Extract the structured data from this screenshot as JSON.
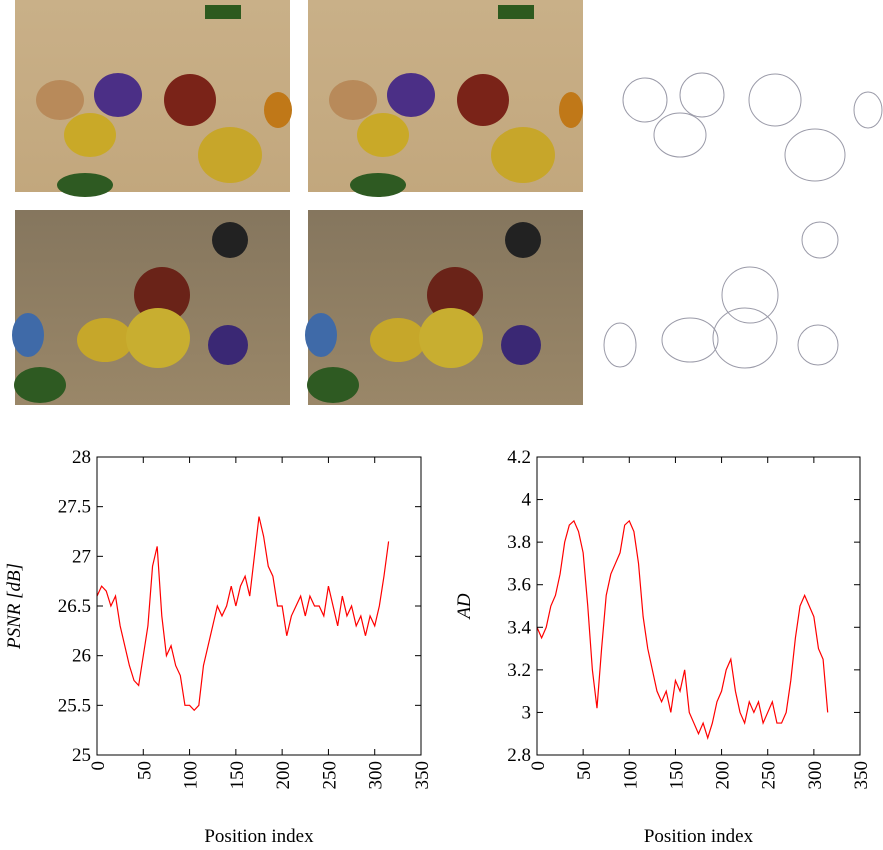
{
  "chart_data": [
    {
      "type": "line",
      "xlabel": "Position index",
      "ylabel": "PSNR [dB]",
      "x": [
        0,
        5,
        10,
        15,
        20,
        25,
        30,
        35,
        40,
        45,
        50,
        55,
        60,
        65,
        70,
        75,
        80,
        85,
        90,
        95,
        100,
        105,
        110,
        115,
        120,
        125,
        130,
        135,
        140,
        145,
        150,
        155,
        160,
        165,
        170,
        175,
        180,
        185,
        190,
        195,
        200,
        205,
        210,
        215,
        220,
        225,
        230,
        235,
        240,
        245,
        250,
        255,
        260,
        265,
        270,
        275,
        280,
        285,
        290,
        295,
        300,
        305,
        310,
        315
      ],
      "values": [
        26.6,
        26.7,
        26.65,
        26.5,
        26.6,
        26.3,
        26.1,
        25.9,
        25.75,
        25.7,
        26.0,
        26.3,
        26.9,
        27.1,
        26.4,
        26.0,
        26.1,
        25.9,
        25.8,
        25.5,
        25.5,
        25.45,
        25.5,
        25.9,
        26.1,
        26.3,
        26.5,
        26.4,
        26.5,
        26.7,
        26.5,
        26.7,
        26.8,
        26.6,
        27.0,
        27.4,
        27.2,
        26.9,
        26.8,
        26.5,
        26.5,
        26.2,
        26.4,
        26.5,
        26.6,
        26.4,
        26.6,
        26.5,
        26.5,
        26.4,
        26.7,
        26.5,
        26.3,
        26.6,
        26.4,
        26.5,
        26.3,
        26.4,
        26.2,
        26.4,
        26.3,
        26.5,
        26.8,
        27.15
      ],
      "color": "#ff0000",
      "xlim": [
        0,
        350
      ],
      "xticks": [
        0,
        50,
        100,
        150,
        200,
        250,
        300,
        350
      ],
      "ylim": [
        25,
        28
      ],
      "yticks": [
        25,
        25.5,
        26,
        26.5,
        27,
        27.5,
        28
      ]
    },
    {
      "type": "line",
      "xlabel": "Position index",
      "ylabel": "AD",
      "x": [
        0,
        5,
        10,
        15,
        20,
        25,
        30,
        35,
        40,
        45,
        50,
        55,
        60,
        65,
        70,
        75,
        80,
        85,
        90,
        95,
        100,
        105,
        110,
        115,
        120,
        125,
        130,
        135,
        140,
        145,
        150,
        155,
        160,
        165,
        170,
        175,
        180,
        185,
        190,
        195,
        200,
        205,
        210,
        215,
        220,
        225,
        230,
        235,
        240,
        245,
        250,
        255,
        260,
        265,
        270,
        275,
        280,
        285,
        290,
        295,
        300,
        305,
        310,
        315
      ],
      "values": [
        3.4,
        3.35,
        3.4,
        3.5,
        3.55,
        3.65,
        3.8,
        3.88,
        3.9,
        3.85,
        3.75,
        3.5,
        3.2,
        3.02,
        3.3,
        3.55,
        3.65,
        3.7,
        3.75,
        3.88,
        3.9,
        3.85,
        3.7,
        3.45,
        3.3,
        3.2,
        3.1,
        3.05,
        3.1,
        3.0,
        3.15,
        3.1,
        3.2,
        3.0,
        2.95,
        2.9,
        2.95,
        2.88,
        2.95,
        3.05,
        3.1,
        3.2,
        3.25,
        3.1,
        3.0,
        2.95,
        3.05,
        3.0,
        3.05,
        2.95,
        3.0,
        3.05,
        2.95,
        2.95,
        3.0,
        3.15,
        3.35,
        3.5,
        3.55,
        3.5,
        3.45,
        3.3,
        3.25,
        3.0
      ],
      "color": "#ff0000",
      "xlim": [
        0,
        350
      ],
      "xticks": [
        0,
        50,
        100,
        150,
        200,
        250,
        300,
        350
      ],
      "ylim": [
        2.8,
        4.2
      ],
      "yticks": [
        2.8,
        3,
        3.2,
        3.4,
        3.6,
        3.8,
        4,
        4.2
      ]
    }
  ]
}
